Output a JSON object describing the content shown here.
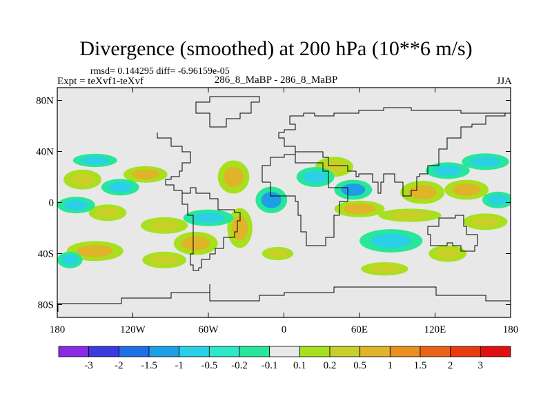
{
  "chart_data": {
    "type": "heatmap",
    "title": "Divergence (smoothed) at 200 hPa (10**6 m/s)",
    "stats_text": "rmsd= 0.144295 diff= -6.96159e-05",
    "left_label": "Expt = teXvf1-teXvf",
    "center_label": "286_8_MaBP - 286_8_MaBP",
    "right_label": "JJA",
    "map_projection": "cylindrical equidistant, global",
    "x_range": [
      -180,
      180
    ],
    "y_range": [
      -90,
      90
    ],
    "x_ticks": [
      {
        "value": -180,
        "label": "180"
      },
      {
        "value": -120,
        "label": "120W"
      },
      {
        "value": -60,
        "label": "60W"
      },
      {
        "value": 0,
        "label": "0"
      },
      {
        "value": 60,
        "label": "60E"
      },
      {
        "value": 120,
        "label": "120E"
      },
      {
        "value": 180,
        "label": "180"
      }
    ],
    "y_ticks": [
      {
        "value": 80,
        "label": "80N"
      },
      {
        "value": 40,
        "label": "40N"
      },
      {
        "value": 0,
        "label": "0"
      },
      {
        "value": -40,
        "label": "40S"
      },
      {
        "value": -80,
        "label": "80S"
      }
    ],
    "colorbar": {
      "colors": [
        "#8a2be2",
        "#3a3ae0",
        "#1e6ee6",
        "#1e9ee6",
        "#2ad0e6",
        "#2ee6c8",
        "#28e69a",
        "#e8e8e8",
        "#a8e020",
        "#c8d028",
        "#e0b428",
        "#e89020",
        "#e86418",
        "#e83c10",
        "#e01010"
      ],
      "labels": [
        "-3",
        "-2",
        "-1.5",
        "-1",
        "-0.5",
        "-0.2",
        "-0.1",
        "0.1",
        "0.2",
        "0.5",
        "1",
        "1.5",
        "2",
        "3"
      ]
    },
    "background_color": "#e8e8e8",
    "positive_regions": [
      {
        "lon": -160,
        "lat": 18,
        "rlon": 12,
        "rlat": 6,
        "level": 0.4
      },
      {
        "lon": -110,
        "lat": 22,
        "rlon": 14,
        "rlat": 5,
        "level": 0.6
      },
      {
        "lon": -140,
        "lat": -8,
        "rlon": 12,
        "rlat": 5,
        "level": 0.3
      },
      {
        "lon": -95,
        "lat": -18,
        "rlon": 15,
        "rlat": 5,
        "level": 0.4
      },
      {
        "lon": -150,
        "lat": -38,
        "rlon": 18,
        "rlat": 6,
        "level": 0.5
      },
      {
        "lon": -95,
        "lat": -45,
        "rlon": 14,
        "rlat": 5,
        "level": 0.3
      },
      {
        "lon": -70,
        "lat": -32,
        "rlon": 14,
        "rlat": 7,
        "level": 0.6
      },
      {
        "lon": -40,
        "lat": 20,
        "rlon": 10,
        "rlat": 10,
        "level": 0.5
      },
      {
        "lon": -35,
        "lat": -20,
        "rlon": 8,
        "rlat": 12,
        "level": 0.6
      },
      {
        "lon": 40,
        "lat": 28,
        "rlon": 12,
        "rlat": 6,
        "level": 0.4
      },
      {
        "lon": 60,
        "lat": -5,
        "rlon": 16,
        "rlat": 5,
        "level": 0.5
      },
      {
        "lon": 100,
        "lat": -10,
        "rlon": 20,
        "rlat": 4,
        "level": 0.4
      },
      {
        "lon": 110,
        "lat": 8,
        "rlon": 14,
        "rlat": 7,
        "level": 0.7
      },
      {
        "lon": 145,
        "lat": 10,
        "rlon": 14,
        "rlat": 6,
        "level": 0.5
      },
      {
        "lon": 160,
        "lat": -15,
        "rlon": 14,
        "rlat": 5,
        "level": 0.4
      },
      {
        "lon": 130,
        "lat": -40,
        "rlon": 12,
        "rlat": 5,
        "level": 0.4
      },
      {
        "lon": 80,
        "lat": -52,
        "rlon": 15,
        "rlat": 4,
        "level": 0.3
      },
      {
        "lon": -5,
        "lat": -40,
        "rlon": 10,
        "rlat": 4,
        "level": 0.3
      }
    ],
    "negative_regions": [
      {
        "lon": -130,
        "lat": 12,
        "rlon": 12,
        "rlat": 5,
        "level": -0.4
      },
      {
        "lon": -165,
        "lat": -2,
        "rlon": 12,
        "rlat": 5,
        "level": -0.3
      },
      {
        "lon": -60,
        "lat": -12,
        "rlon": 16,
        "rlat": 5,
        "level": -0.4
      },
      {
        "lon": -10,
        "lat": 2,
        "rlon": 10,
        "rlat": 8,
        "level": -0.6
      },
      {
        "lon": 25,
        "lat": 20,
        "rlon": 12,
        "rlat": 6,
        "level": -0.3
      },
      {
        "lon": 55,
        "lat": 10,
        "rlon": 12,
        "rlat": 6,
        "level": -0.5
      },
      {
        "lon": 85,
        "lat": -30,
        "rlon": 20,
        "rlat": 7,
        "level": -0.3
      },
      {
        "lon": 130,
        "lat": 25,
        "rlon": 14,
        "rlat": 5,
        "level": -0.3
      },
      {
        "lon": 160,
        "lat": 32,
        "rlon": 15,
        "rlat": 5,
        "level": -0.3
      },
      {
        "lon": 170,
        "lat": 2,
        "rlon": 10,
        "rlat": 5,
        "level": -0.4
      },
      {
        "lon": -170,
        "lat": -45,
        "rlon": 8,
        "rlat": 5,
        "level": -0.3
      },
      {
        "lon": -150,
        "lat": 33,
        "rlon": 14,
        "rlat": 4,
        "level": -0.3
      }
    ]
  }
}
